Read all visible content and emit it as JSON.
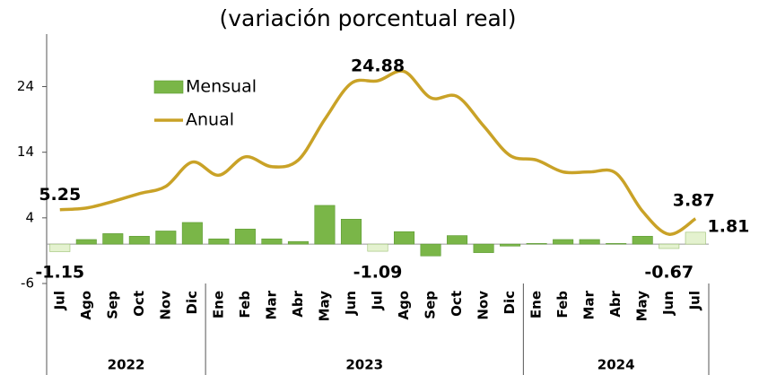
{
  "chart_data": {
    "type": "bar-line",
    "title": "(variación porcentual real)",
    "categories": [
      "Jul",
      "Ago",
      "Sep",
      "Oct",
      "Nov",
      "Dic",
      "Ene",
      "Feb",
      "Mar",
      "Abr",
      "May",
      "Jun",
      "Jul",
      "Ago",
      "Sep",
      "Oct",
      "Nov",
      "Dic",
      "Ene",
      "Feb",
      "Mar",
      "Abr",
      "May",
      "Jun",
      "Jul"
    ],
    "groups": [
      {
        "label": "2022",
        "span": [
          0,
          5
        ]
      },
      {
        "label": "2023",
        "span": [
          6,
          17
        ]
      },
      {
        "label": "2024",
        "span": [
          18,
          24
        ]
      }
    ],
    "series": [
      {
        "name": "Mensual",
        "type": "bar",
        "color": "#7ab648",
        "highlight_color": "#e4f2cf",
        "values": [
          -1.15,
          0.7,
          1.6,
          1.2,
          2.0,
          3.3,
          0.8,
          2.3,
          0.8,
          0.4,
          5.9,
          3.8,
          -1.09,
          1.9,
          -1.8,
          1.3,
          -1.3,
          -0.3,
          0.1,
          0.7,
          0.7,
          0.1,
          1.2,
          -0.67,
          1.81
        ],
        "value_labels": [
          "-1.15",
          null,
          null,
          null,
          null,
          null,
          null,
          null,
          null,
          null,
          null,
          null,
          "-1.09",
          null,
          null,
          null,
          null,
          null,
          null,
          null,
          null,
          null,
          null,
          "-0.67",
          "1.81"
        ],
        "label_color": "#1e5a1e"
      },
      {
        "name": "Anual",
        "type": "line",
        "color": "#c9a227",
        "values": [
          5.25,
          5.5,
          6.5,
          7.7,
          8.8,
          12.5,
          10.5,
          13.3,
          11.8,
          12.8,
          19.0,
          24.5,
          24.88,
          26.3,
          22.3,
          22.5,
          18.0,
          13.5,
          12.8,
          11.0,
          11.0,
          10.8,
          5.0,
          1.5,
          3.87
        ],
        "value_labels": [
          "5.25",
          null,
          null,
          null,
          null,
          null,
          null,
          null,
          null,
          null,
          null,
          null,
          "24.88",
          null,
          null,
          null,
          null,
          null,
          null,
          null,
          null,
          null,
          null,
          null,
          "3.87"
        ],
        "label_color": "#c9a227"
      }
    ],
    "ylim": [
      -6,
      32
    ],
    "yticks": [
      -6,
      4,
      14,
      24
    ]
  }
}
